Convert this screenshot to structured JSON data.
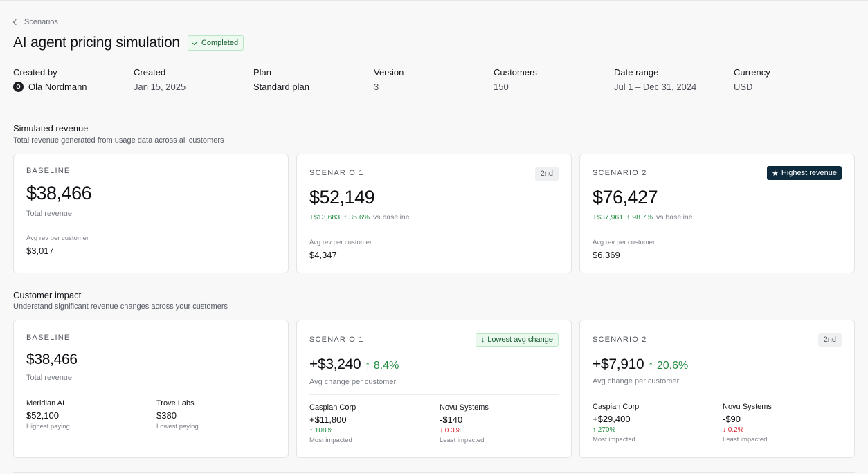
{
  "breadcrumb": {
    "back_label": "Scenarios"
  },
  "header": {
    "title": "AI agent pricing simulation",
    "status": "Completed"
  },
  "meta": {
    "created_by": {
      "label": "Created by",
      "avatar_initial": "O",
      "value": "Ola Nordmann"
    },
    "created": {
      "label": "Created",
      "value": "Jan 15, 2025"
    },
    "plan": {
      "label": "Plan",
      "value": "Standard plan"
    },
    "version": {
      "label": "Version",
      "value": "3"
    },
    "customers": {
      "label": "Customers",
      "value": "150"
    },
    "date_range": {
      "label": "Date range",
      "value": "Jul 1 – Dec 31, 2024"
    },
    "currency": {
      "label": "Currency",
      "value": "USD"
    }
  },
  "revenue": {
    "title": "Simulated revenue",
    "subtitle": "Total revenue generated from usage data across all customers",
    "baseline": {
      "label": "BASELINE",
      "amount": "$38,466",
      "caption": "Total revenue",
      "avg_label": "Avg rev per customer",
      "avg_value": "$3,017"
    },
    "scenario1": {
      "label": "SCENARIO 1",
      "rank": "2nd",
      "amount": "$52,149",
      "delta_abs": "+$13,683",
      "delta_pct": "↑ 35.6%",
      "vs": "vs baseline",
      "avg_label": "Avg rev per customer",
      "avg_value": "$4,347"
    },
    "scenario2": {
      "label": "SCENARIO 2",
      "badge": "Highest revenue",
      "badge_icon": "star-icon",
      "amount": "$76,427",
      "delta_abs": "+$37,961",
      "delta_pct": "↑ 98.7%",
      "vs": "vs baseline",
      "avg_label": "Avg rev per customer",
      "avg_value": "$6,369"
    }
  },
  "impact": {
    "title": "Customer impact",
    "subtitle": "Understand significant revenue changes across your customers",
    "baseline": {
      "label": "BASELINE",
      "amount": "$38,466",
      "caption": "Total revenue",
      "left": {
        "name": "Meridian AI",
        "value": "$52,100",
        "note": "Highest paying"
      },
      "right": {
        "name": "Trove Labs",
        "value": "$380",
        "note": "Lowest paying"
      }
    },
    "scenario1": {
      "label": "SCENARIO 1",
      "badge": "Lowest avg change",
      "amount": "+$3,240",
      "pct": "↑ 8.4%",
      "caption": "Avg change per customer",
      "left": {
        "name": "Caspian Corp",
        "value": "+$11,800",
        "pct": "↑ 108%",
        "note": "Most impacted"
      },
      "right": {
        "name": "Novu Systems",
        "value": "-$140",
        "pct": "↓ 0.3%",
        "note": "Least impacted"
      }
    },
    "scenario2": {
      "label": "SCENARIO 2",
      "rank": "2nd",
      "amount": "+$7,910",
      "pct": "↑ 20.6%",
      "caption": "Avg change per customer",
      "left": {
        "name": "Caspian Corp",
        "value": "+$29,400",
        "pct": "↑ 270%",
        "note": "Most impacted"
      },
      "right": {
        "name": "Novu Systems",
        "value": "-$90",
        "pct": "↓ 0.2%",
        "note": "Least impacted"
      }
    }
  },
  "colors": {
    "positive": "#1f8a3e",
    "negative": "#d3232f",
    "badge_dark": "#0e2a3d"
  }
}
